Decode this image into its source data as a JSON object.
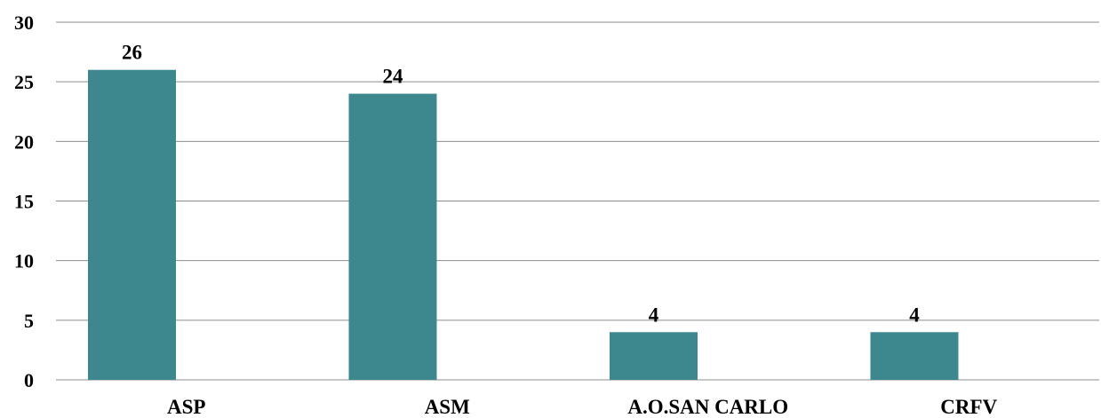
{
  "chart_data": {
    "type": "bar",
    "categories": [
      "ASP",
      "ASM",
      "A.O.SAN CARLO",
      "CRFV"
    ],
    "values": [
      26,
      24,
      4,
      4
    ],
    "data_labels": [
      "26",
      "24",
      "4",
      "4"
    ],
    "ylim": [
      0,
      30
    ],
    "yticks": [
      0,
      5,
      10,
      15,
      20,
      25,
      30
    ],
    "grid": true,
    "bar_color": "#3d888f",
    "title": "",
    "xlabel": "",
    "ylabel": ""
  }
}
